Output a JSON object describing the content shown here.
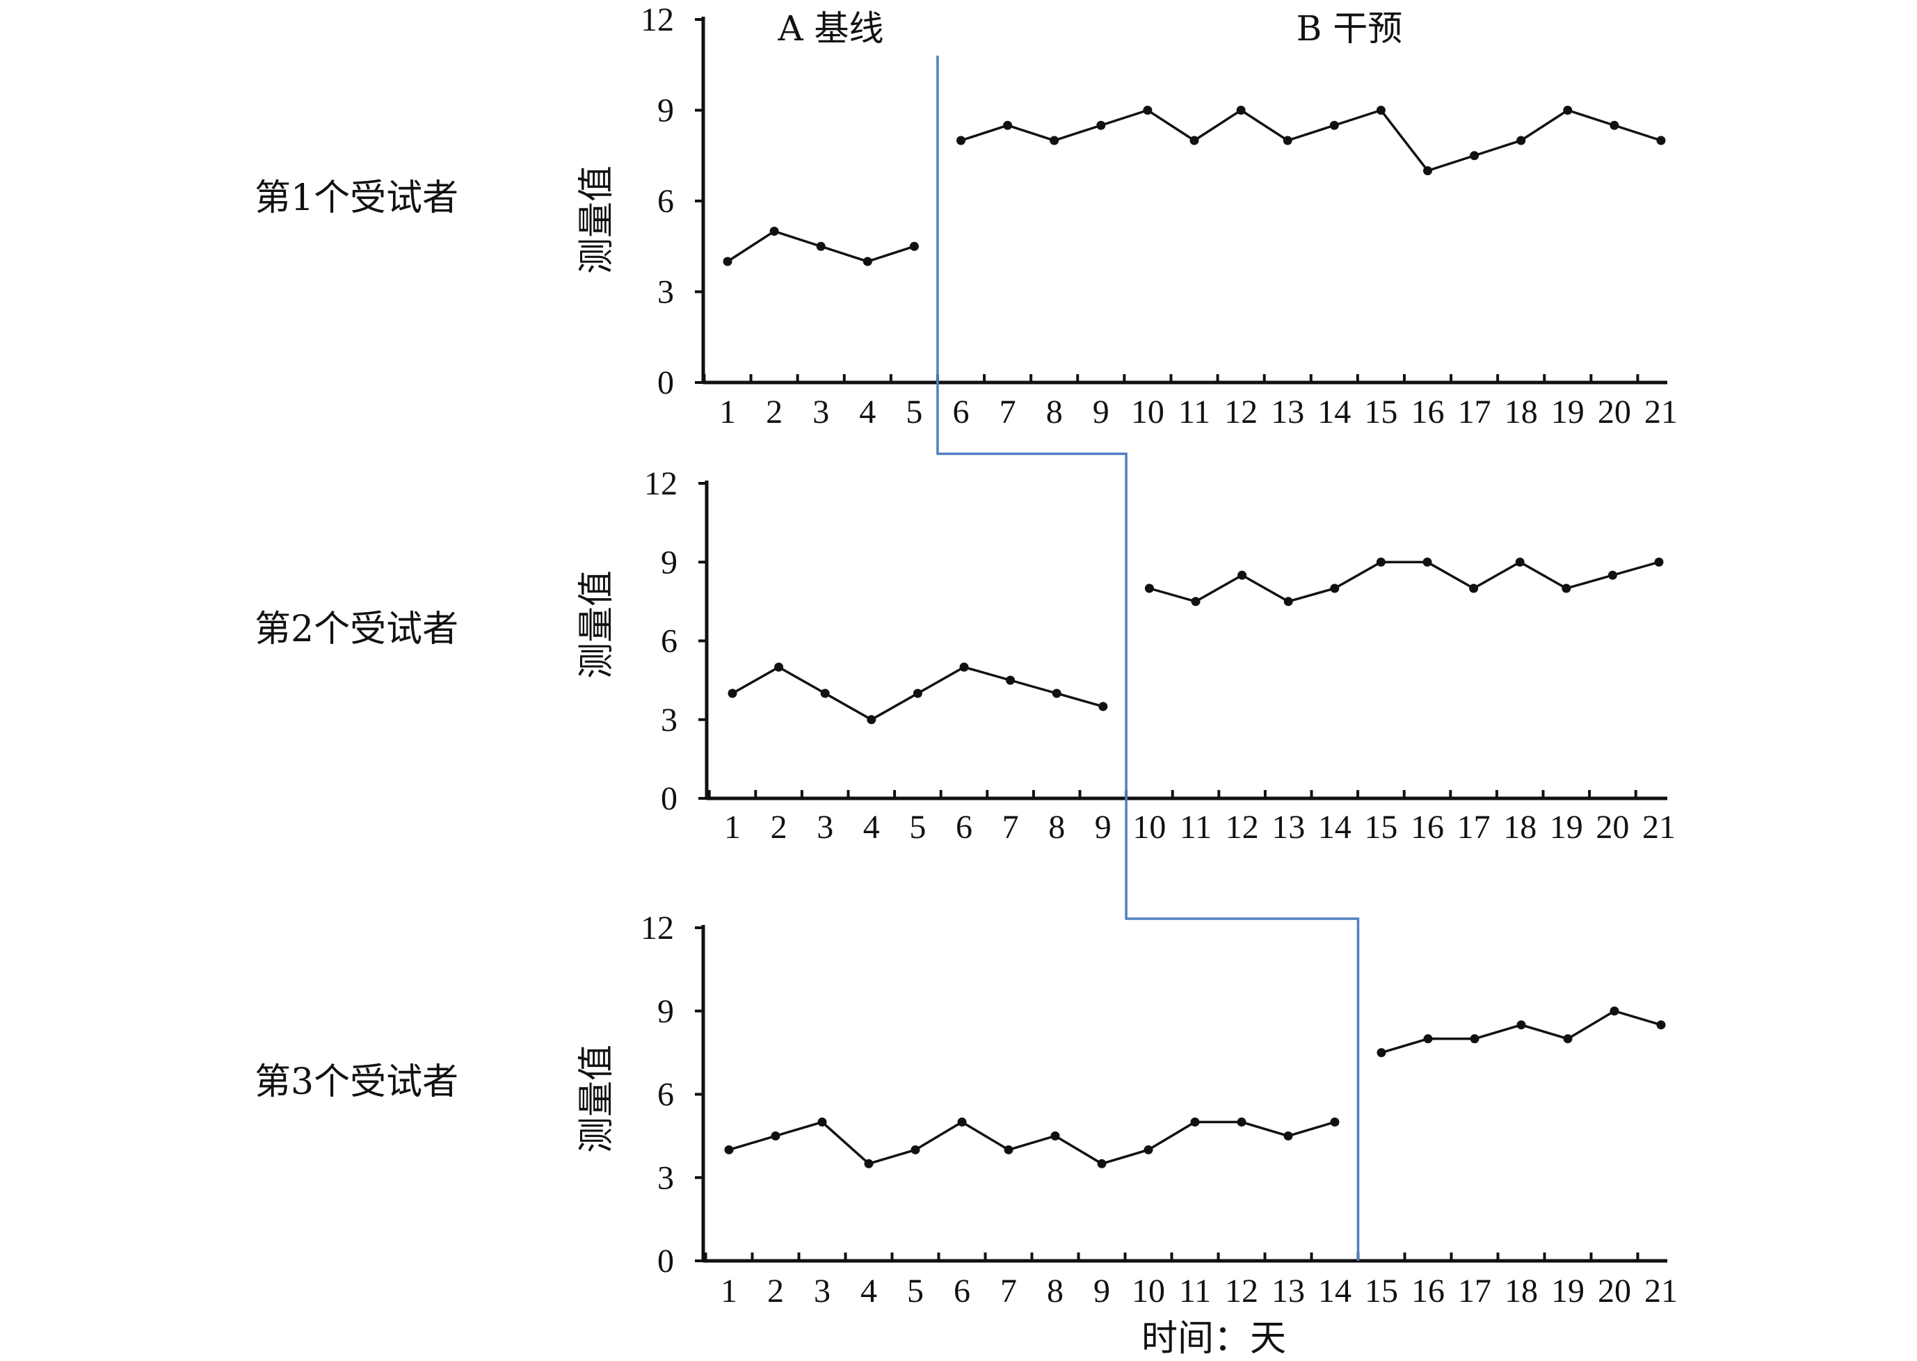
{
  "chart_data": {
    "type": "line",
    "x_title": "时间：天",
    "phase_labels": {
      "baseline": "A 基线",
      "intervention": "B 干预"
    },
    "days": [
      1,
      2,
      3,
      4,
      5,
      6,
      7,
      8,
      9,
      10,
      11,
      12,
      13,
      14,
      15,
      16,
      17,
      18,
      19,
      20,
      21
    ],
    "yticks": [
      0,
      3,
      6,
      9,
      12
    ],
    "ylim": [
      0,
      12
    ],
    "panels": [
      {
        "subject": "第1个受试者",
        "ylabel": "测量值",
        "phase_change_after_day": 5,
        "baseline": {
          "x": [
            1,
            2,
            3,
            4,
            5
          ],
          "y": [
            4,
            5,
            4.5,
            4,
            4.5
          ]
        },
        "intervention": {
          "x": [
            6,
            7,
            8,
            9,
            10,
            11,
            12,
            13,
            14,
            15,
            16,
            17,
            18,
            19,
            20,
            21
          ],
          "y": [
            8,
            8.5,
            8,
            8.5,
            9,
            8,
            9,
            8,
            8.5,
            9,
            7,
            7.5,
            8,
            9,
            8.5,
            8
          ]
        }
      },
      {
        "subject": "第2个受试者",
        "ylabel": "测量值",
        "phase_change_after_day": 9,
        "baseline": {
          "x": [
            1,
            2,
            3,
            4,
            5,
            6,
            7,
            8,
            9
          ],
          "y": [
            4,
            5,
            4,
            3,
            4,
            5,
            4.5,
            4,
            3.5
          ]
        },
        "intervention": {
          "x": [
            10,
            11,
            12,
            13,
            14,
            15,
            16,
            17,
            18,
            19,
            20,
            21
          ],
          "y": [
            8,
            7.5,
            8.5,
            7.5,
            8,
            9,
            9,
            8,
            9,
            8,
            8.5,
            9
          ]
        }
      },
      {
        "subject": "第3个受试者",
        "ylabel": "测量值",
        "phase_change_after_day": 14,
        "baseline": {
          "x": [
            1,
            2,
            3,
            4,
            5,
            6,
            7,
            8,
            9,
            10,
            11,
            12,
            13,
            14
          ],
          "y": [
            4,
            4.5,
            5,
            3.5,
            4,
            5,
            4,
            4.5,
            3.5,
            4,
            5,
            5,
            4.5,
            5
          ]
        },
        "intervention": {
          "x": [
            15,
            16,
            17,
            18,
            19,
            20,
            21
          ],
          "y": [
            7.5,
            8,
            8,
            8.5,
            8,
            9,
            8.5
          ]
        }
      }
    ],
    "colors": {
      "data": "#111111",
      "phase_line": "#4f7fc0"
    }
  }
}
